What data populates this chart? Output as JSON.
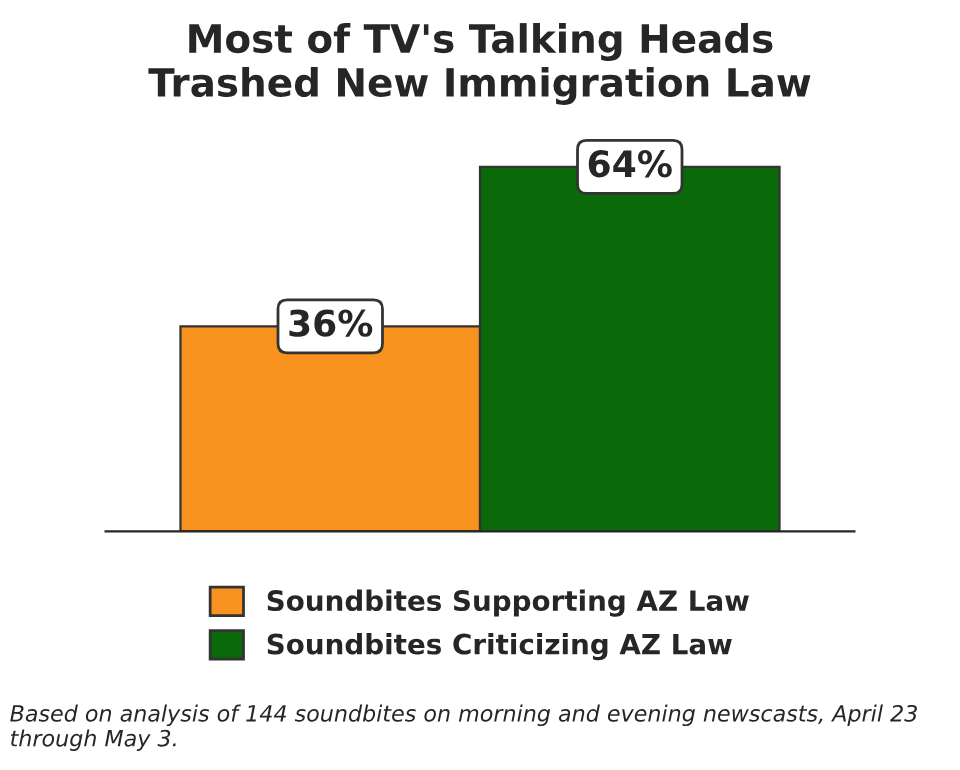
{
  "chart_data": {
    "type": "bar",
    "title": "Most of TV's Talking Heads\nTrashed New Immigration Law",
    "categories": [
      null
    ],
    "series": [
      {
        "name": "Soundbites Supporting AZ Law",
        "color": "#f7931e",
        "values": [
          36
        ],
        "value_labels": [
          "36%"
        ]
      },
      {
        "name": "Soundbites Criticizing AZ Law",
        "color": "#0a6a0a",
        "values": [
          64
        ],
        "value_labels": [
          "64%"
        ]
      }
    ],
    "legend": "bottom",
    "grid": false,
    "annotations": [
      "Based on analysis of 144 soundbites on morning and evening newscasts, April 23 through May 3."
    ]
  }
}
